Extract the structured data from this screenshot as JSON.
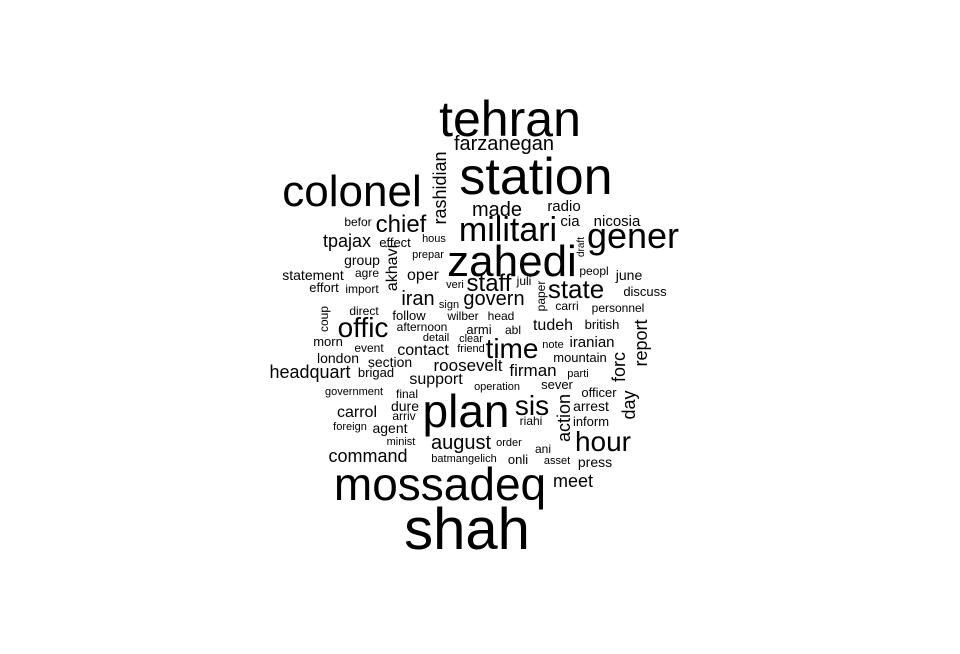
{
  "chart_data": {
    "type": "wordcloud",
    "color": "#000000",
    "words": [
      {
        "text": "shah",
        "weight": 58
      },
      {
        "text": "tehran",
        "weight": 50
      },
      {
        "text": "station",
        "weight": 52
      },
      {
        "text": "mossadeq",
        "weight": 46
      },
      {
        "text": "zahedi",
        "weight": 44
      },
      {
        "text": "plan",
        "weight": 46
      },
      {
        "text": "colonel",
        "weight": 44
      },
      {
        "text": "gener",
        "weight": 36
      },
      {
        "text": "militari",
        "weight": 34
      },
      {
        "text": "hour",
        "weight": 28
      },
      {
        "text": "offic",
        "weight": 28
      },
      {
        "text": "time",
        "weight": 28
      },
      {
        "text": "sis",
        "weight": 28
      },
      {
        "text": "state",
        "weight": 26
      },
      {
        "text": "staff",
        "weight": 24
      },
      {
        "text": "chief",
        "weight": 24
      },
      {
        "text": "farzanegan",
        "weight": 20
      },
      {
        "text": "made",
        "weight": 20
      },
      {
        "text": "govern",
        "weight": 20
      },
      {
        "text": "iran",
        "weight": 20
      },
      {
        "text": "august",
        "weight": 20
      },
      {
        "text": "meet",
        "weight": 18
      },
      {
        "text": "command",
        "weight": 18
      },
      {
        "text": "headquart",
        "weight": 18
      },
      {
        "text": "tpajax",
        "weight": 18
      },
      {
        "text": "action",
        "weight": 18
      },
      {
        "text": "report",
        "weight": 18
      },
      {
        "text": "forc",
        "weight": 18
      },
      {
        "text": "day",
        "weight": 18
      },
      {
        "text": "rashidian",
        "weight": 18
      },
      {
        "text": "akhavi",
        "weight": 16
      },
      {
        "text": "roosevelt",
        "weight": 17
      },
      {
        "text": "firman",
        "weight": 17
      },
      {
        "text": "support",
        "weight": 16
      },
      {
        "text": "contact",
        "weight": 16
      },
      {
        "text": "tudeh",
        "weight": 16
      },
      {
        "text": "carrol",
        "weight": 16
      },
      {
        "text": "oper",
        "weight": 16
      },
      {
        "text": "radio",
        "weight": 15
      },
      {
        "text": "cia",
        "weight": 15
      },
      {
        "text": "nicosia",
        "weight": 15
      },
      {
        "text": "iranian",
        "weight": 15
      },
      {
        "text": "statement",
        "weight": 14
      },
      {
        "text": "press",
        "weight": 14
      },
      {
        "text": "arrest",
        "weight": 14
      },
      {
        "text": "agent",
        "weight": 14
      },
      {
        "text": "june",
        "weight": 14
      },
      {
        "text": "london",
        "weight": 14
      },
      {
        "text": "group",
        "weight": 14
      },
      {
        "text": "section",
        "weight": 14
      },
      {
        "text": "dure",
        "weight": 14
      },
      {
        "text": "british",
        "weight": 13
      },
      {
        "text": "sever",
        "weight": 13
      },
      {
        "text": "discuss",
        "weight": 13
      },
      {
        "text": "inform",
        "weight": 13
      },
      {
        "text": "mountain",
        "weight": 13
      },
      {
        "text": "follow",
        "weight": 13
      },
      {
        "text": "officer",
        "weight": 13
      },
      {
        "text": "effect",
        "weight": 13
      },
      {
        "text": "armi",
        "weight": 13
      },
      {
        "text": "onli",
        "weight": 13
      },
      {
        "text": "morn",
        "weight": 13
      },
      {
        "text": "effort",
        "weight": 13
      },
      {
        "text": "brigad",
        "weight": 13
      },
      {
        "text": "befor",
        "weight": 12
      },
      {
        "text": "coup",
        "weight": 12
      },
      {
        "text": "direct",
        "weight": 12
      },
      {
        "text": "event",
        "weight": 12
      },
      {
        "text": "personnel",
        "weight": 12
      },
      {
        "text": "carri",
        "weight": 12
      },
      {
        "text": "agre",
        "weight": 12
      },
      {
        "text": "peopl",
        "weight": 12
      },
      {
        "text": "paper",
        "weight": 12
      },
      {
        "text": "juli",
        "weight": 12
      },
      {
        "text": "final",
        "weight": 12
      },
      {
        "text": "arriv",
        "weight": 12
      },
      {
        "text": "afternoon",
        "weight": 12
      },
      {
        "text": "ani",
        "weight": 12
      },
      {
        "text": "riahi",
        "weight": 12
      },
      {
        "text": "abl",
        "weight": 12
      },
      {
        "text": "head",
        "weight": 12
      },
      {
        "text": "wilber",
        "weight": 12
      },
      {
        "text": "import",
        "weight": 12
      },
      {
        "text": "hous",
        "weight": 11
      },
      {
        "text": "prepar",
        "weight": 11
      },
      {
        "text": "veri",
        "weight": 11
      },
      {
        "text": "sign",
        "weight": 11
      },
      {
        "text": "detail",
        "weight": 11
      },
      {
        "text": "clear",
        "weight": 11
      },
      {
        "text": "friend",
        "weight": 11
      },
      {
        "text": "note",
        "weight": 11
      },
      {
        "text": "parti",
        "weight": 11
      },
      {
        "text": "operation",
        "weight": 11
      },
      {
        "text": "government",
        "weight": 11
      },
      {
        "text": "foreign",
        "weight": 11
      },
      {
        "text": "minist",
        "weight": 11
      },
      {
        "text": "order",
        "weight": 11
      },
      {
        "text": "asset",
        "weight": 11
      },
      {
        "text": "batmangelich",
        "weight": 11
      },
      {
        "text": "draft",
        "weight": 10
      }
    ]
  }
}
